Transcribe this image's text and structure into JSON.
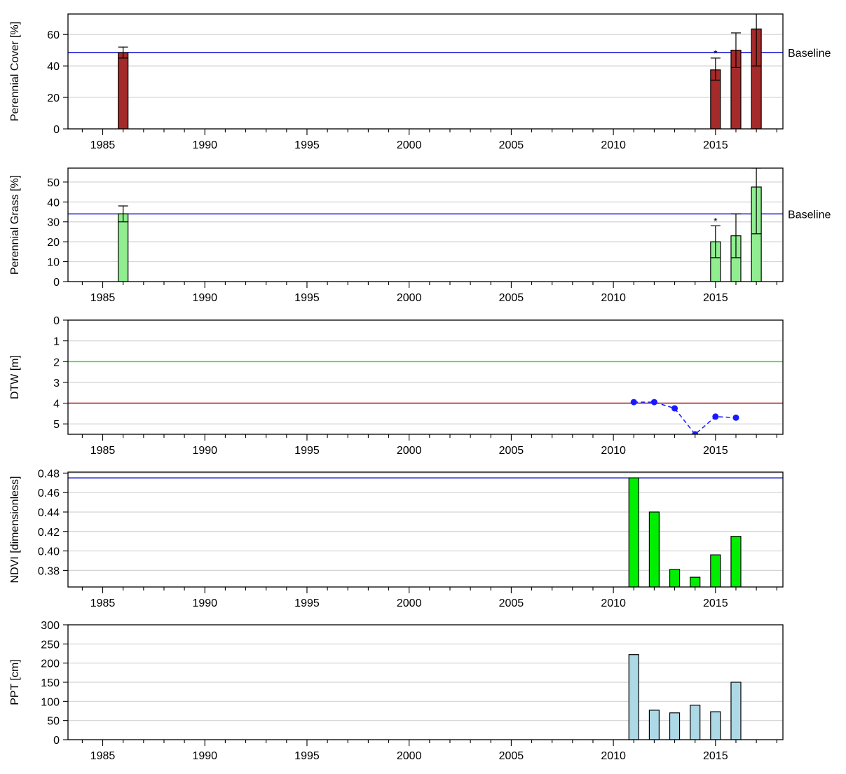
{
  "chart_data": [
    {
      "type": "bar",
      "ylabel": "Perennial Cover [%]",
      "ylim": [
        0,
        73
      ],
      "yticks": [
        0,
        20,
        40,
        60
      ],
      "xlim": [
        1983.3,
        2018.3
      ],
      "xticks": [
        1985,
        1990,
        1995,
        2000,
        2005,
        2010,
        2015
      ],
      "grid": true,
      "bar_color": "#a52a2a",
      "bars": [
        {
          "x": 1986,
          "y": 48.5,
          "err_lo": 45,
          "err_hi": 52
        },
        {
          "x": 2015,
          "y": 37.5,
          "err_lo": 31,
          "err_hi": 45,
          "note": "*"
        },
        {
          "x": 2016,
          "y": 50,
          "err_lo": 39,
          "err_hi": 61
        },
        {
          "x": 2017,
          "y": 63.5,
          "err_lo": 40,
          "err_hi": 75
        }
      ],
      "hlines": [
        {
          "y": 48.5,
          "color": "#1a1ad6",
          "label": "Baseline"
        }
      ]
    },
    {
      "type": "bar",
      "ylabel": "Perennial Grass [%]",
      "ylim": [
        0,
        57
      ],
      "yticks": [
        0,
        10,
        20,
        30,
        40,
        50
      ],
      "xlim": [
        1983.3,
        2018.3
      ],
      "xticks": [
        1985,
        1990,
        1995,
        2000,
        2005,
        2010,
        2015
      ],
      "grid": true,
      "bar_color": "#90ee90",
      "bars": [
        {
          "x": 1986,
          "y": 34,
          "err_lo": 30,
          "err_hi": 38
        },
        {
          "x": 2015,
          "y": 20,
          "err_lo": 12,
          "err_hi": 28,
          "note": "*"
        },
        {
          "x": 2016,
          "y": 23,
          "err_lo": 12,
          "err_hi": 34
        },
        {
          "x": 2017,
          "y": 47.5,
          "err_lo": 24,
          "err_hi": 57
        }
      ],
      "hlines": [
        {
          "y": 34,
          "color": "#1a1ad6",
          "label": "Baseline"
        }
      ]
    },
    {
      "type": "line",
      "ylabel": "DTW [m]",
      "ylim": [
        5.5,
        0
      ],
      "yticks": [
        0,
        1,
        2,
        3,
        4,
        5
      ],
      "xlim": [
        1983.3,
        2018.3
      ],
      "xticks": [
        1985,
        1990,
        1995,
        2000,
        2005,
        2010,
        2015
      ],
      "grid": true,
      "series": [
        {
          "x": [
            2011,
            2012,
            2013,
            2014,
            2015,
            2016
          ],
          "y": [
            3.95,
            3.95,
            4.25,
            5.5,
            4.65,
            4.7
          ],
          "color": "#1a1aff",
          "style": "dashed-markers"
        }
      ],
      "hlines": [
        {
          "y": 2,
          "color": "#33dd33",
          "label": ""
        },
        {
          "y": 4,
          "color": "#a52a2a",
          "label": ""
        }
      ]
    },
    {
      "type": "bar",
      "ylabel": "NDVI [dimensionless]",
      "ylim": [
        0.363,
        0.481
      ],
      "yticks": [
        0.38,
        0.4,
        0.42,
        0.44,
        0.46,
        0.48
      ],
      "ytick_labels": [
        "0.38",
        "0.40",
        "0.42",
        "0.44",
        "0.46",
        "0.48"
      ],
      "xlim": [
        1983.3,
        2018.3
      ],
      "xticks": [
        1985,
        1990,
        1995,
        2000,
        2005,
        2010,
        2015
      ],
      "grid": true,
      "bar_color": "#00ee00",
      "bars": [
        {
          "x": 2011,
          "y": 0.475
        },
        {
          "x": 2012,
          "y": 0.44
        },
        {
          "x": 2013,
          "y": 0.381
        },
        {
          "x": 2014,
          "y": 0.373
        },
        {
          "x": 2015,
          "y": 0.396
        },
        {
          "x": 2016,
          "y": 0.415
        }
      ],
      "hlines": [
        {
          "y": 0.475,
          "color": "#1a1ad6",
          "label": ""
        }
      ]
    },
    {
      "type": "bar",
      "ylabel": "PPT [cm]",
      "ylim": [
        0,
        300
      ],
      "yticks": [
        0,
        50,
        100,
        150,
        200,
        250,
        300
      ],
      "xlim": [
        1983.3,
        2018.3
      ],
      "xticks": [
        1985,
        1990,
        1995,
        2000,
        2005,
        2010,
        2015
      ],
      "grid": true,
      "bar_color": "#add8e6",
      "bars": [
        {
          "x": 2011,
          "y": 222
        },
        {
          "x": 2012,
          "y": 77
        },
        {
          "x": 2013,
          "y": 70
        },
        {
          "x": 2014,
          "y": 90
        },
        {
          "x": 2015,
          "y": 73
        },
        {
          "x": 2016,
          "y": 150
        }
      ],
      "hlines": []
    }
  ]
}
